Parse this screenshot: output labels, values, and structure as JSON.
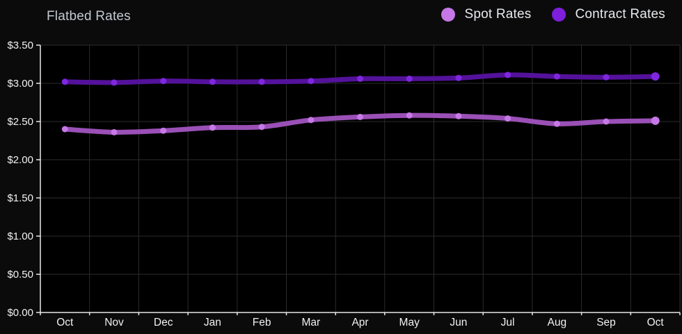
{
  "header": {
    "title": "Flatbed Rates"
  },
  "legend": {
    "items": [
      {
        "label": "Spot Rates",
        "color": "#c678e6"
      },
      {
        "label": "Contract Rates",
        "color": "#7d1fdd"
      }
    ]
  },
  "chart_data": {
    "type": "line",
    "title": "Flatbed Rates",
    "categories": [
      "Oct",
      "Nov",
      "Dec",
      "Jan",
      "Feb",
      "Mar",
      "Apr",
      "May",
      "Jun",
      "Jul",
      "Aug",
      "Sep",
      "Oct"
    ],
    "series": [
      {
        "name": "Spot Rates",
        "line_color": "#9a50b6",
        "point_color": "#c678e6",
        "values": [
          2.4,
          2.36,
          2.38,
          2.42,
          2.43,
          2.52,
          2.56,
          2.58,
          2.57,
          2.54,
          2.47,
          2.5,
          2.51
        ]
      },
      {
        "name": "Contract Rates",
        "line_color": "#54129b",
        "point_color": "#7f26df",
        "values": [
          3.02,
          3.01,
          3.03,
          3.02,
          3.02,
          3.03,
          3.06,
          3.06,
          3.07,
          3.11,
          3.09,
          3.08,
          3.09
        ]
      }
    ],
    "ylim": [
      0,
      3.5
    ],
    "ytick_step": 0.5,
    "ytick_labels": [
      "$0.00",
      "$0.50",
      "$1.00",
      "$1.50",
      "$2.00",
      "$2.50",
      "$3.00",
      "$3.50"
    ],
    "xlabel": "",
    "ylabel": "",
    "grid": true,
    "legend_position": "top-right",
    "colors": {
      "page_background": "#0b0b0c",
      "plot_background": "#000000",
      "axis": "#e8e8e8",
      "grid": "#2c2c2c",
      "tick_label": "#f2f2f2"
    }
  }
}
